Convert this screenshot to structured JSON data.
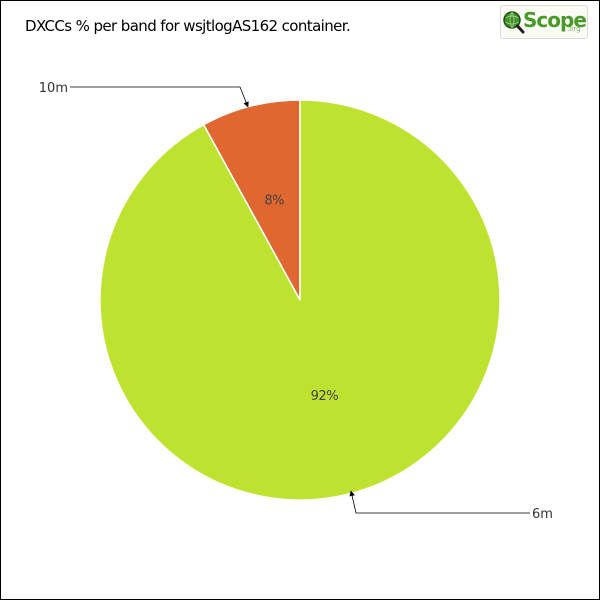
{
  "chart_data": {
    "type": "pie",
    "title": "DXCCs % per band for wsjtlogAS162 container.",
    "categories": [
      "10m",
      "6m"
    ],
    "values": [
      8,
      92
    ],
    "value_labels": [
      "8%",
      "92%"
    ],
    "colors": [
      "#e0672f",
      "#bee230"
    ]
  },
  "logo": {
    "text": "Scope",
    "suffix": ".org"
  }
}
